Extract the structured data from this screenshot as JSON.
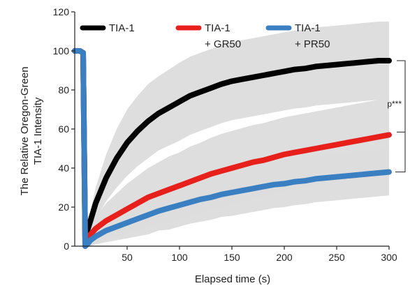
{
  "chart_data": {
    "type": "line",
    "title": "",
    "xlabel": "Elapsed time (s)",
    "ylabel_line1": "The Relative Oregon-Green",
    "ylabel_line2": "TIA-1 Intensity",
    "xlim": [
      0,
      300
    ],
    "ylim": [
      0,
      120
    ],
    "x_ticks": [
      50,
      100,
      150,
      200,
      250,
      300
    ],
    "y_ticks": [
      0,
      20,
      40,
      60,
      80,
      100,
      120
    ],
    "grid": false,
    "legend_position": "top",
    "legend": [
      {
        "line1": "TIA-1",
        "line2": "",
        "color": "#000000"
      },
      {
        "line1": "TIA-1",
        "line2": "+ GR50",
        "color": "#e8201c"
      },
      {
        "line1": "TIA-1",
        "line2": "+ PR50",
        "color": "#3a7fc1"
      }
    ],
    "bleach_time": 10,
    "error_band_color": "#dcdcdc",
    "series": [
      {
        "name": "TIA-1",
        "color": "#000000",
        "x": [
          0,
          5,
          8,
          10,
          12,
          15,
          20,
          30,
          40,
          50,
          60,
          70,
          80,
          90,
          100,
          110,
          120,
          130,
          140,
          150,
          160,
          170,
          180,
          190,
          200,
          210,
          220,
          230,
          240,
          250,
          260,
          270,
          280,
          290,
          300
        ],
        "y": [
          100,
          100,
          99,
          3,
          8,
          13,
          22,
          35,
          45,
          53,
          59,
          64,
          68,
          71,
          74,
          77,
          79,
          81,
          83,
          84.5,
          85.5,
          86.5,
          87.5,
          88.5,
          89.5,
          90.5,
          91,
          92,
          92.5,
          93,
          93.5,
          94,
          94.5,
          95,
          95
        ],
        "error": [
          0,
          0,
          1,
          2,
          3,
          5,
          8,
          12,
          15,
          17,
          18,
          19,
          19,
          19.5,
          20,
          20,
          20,
          20,
          20,
          20,
          20,
          20,
          20,
          20,
          20,
          20,
          20,
          20,
          20,
          20,
          20,
          20,
          20,
          20,
          20
        ]
      },
      {
        "name": "TIA-1 + GR50",
        "color": "#e8201c",
        "x": [
          0,
          5,
          8,
          10,
          12,
          15,
          20,
          30,
          40,
          50,
          60,
          70,
          80,
          90,
          100,
          110,
          120,
          130,
          140,
          150,
          160,
          170,
          180,
          190,
          200,
          210,
          220,
          230,
          240,
          250,
          260,
          270,
          280,
          290,
          300
        ],
        "y": [
          100,
          100,
          99,
          0,
          2,
          6,
          9,
          13,
          16,
          19,
          22,
          25,
          27,
          29,
          31,
          33,
          35,
          37,
          38.5,
          40,
          41.5,
          43,
          44,
          45.5,
          47,
          48,
          49,
          50,
          51,
          52,
          53,
          54,
          55,
          56,
          57
        ],
        "error": [
          0,
          0,
          1,
          2,
          3,
          4,
          6,
          9,
          11,
          13,
          14,
          15,
          16,
          17,
          17,
          18,
          18,
          18.5,
          19,
          19,
          19,
          19,
          19,
          19,
          19,
          19,
          19,
          19,
          19,
          19,
          19,
          19,
          19,
          19,
          19
        ]
      },
      {
        "name": "TIA-1 + PR50",
        "color": "#3a7fc1",
        "x": [
          0,
          5,
          8,
          10,
          12,
          15,
          20,
          30,
          40,
          50,
          60,
          70,
          80,
          90,
          100,
          110,
          120,
          130,
          140,
          150,
          160,
          170,
          180,
          190,
          200,
          210,
          220,
          230,
          240,
          250,
          260,
          270,
          280,
          290,
          300
        ],
        "y": [
          100,
          100,
          99,
          0,
          1,
          3,
          5,
          8,
          10,
          12,
          14,
          16,
          18,
          19.5,
          21,
          22.5,
          24,
          25,
          26.5,
          27.5,
          28.5,
          29.5,
          30.5,
          31.5,
          32,
          33,
          33.5,
          34.5,
          35,
          35.5,
          36,
          36.5,
          37,
          37.5,
          38
        ],
        "error": [
          0,
          0,
          1,
          2,
          2,
          3,
          4,
          6,
          7,
          8,
          9,
          10,
          10,
          11,
          11,
          11,
          11.5,
          11.5,
          11.5,
          12,
          12,
          12,
          12,
          12,
          12,
          12,
          12,
          12,
          12,
          12,
          12,
          12,
          12,
          12,
          12
        ]
      }
    ],
    "annotation": {
      "label": "p***",
      "bracket_outer_from": 95,
      "bracket_outer_to": 38,
      "bracket_inner_from": 57,
      "bracket_inner_to": 38
    }
  }
}
